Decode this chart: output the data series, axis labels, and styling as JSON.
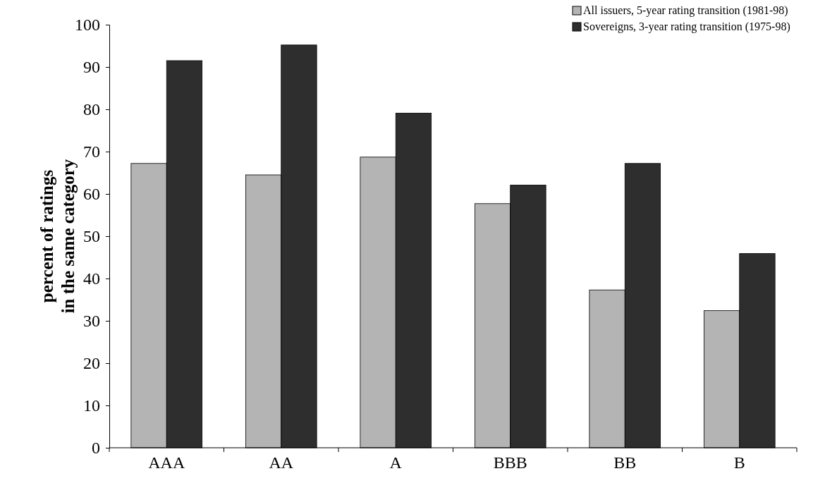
{
  "chart_data": {
    "type": "bar",
    "ylabel": "percent of ratings\nin the same category",
    "categories": [
      "AAA",
      "AA",
      "A",
      "BBB",
      "BB",
      "B"
    ],
    "series": [
      {
        "name": "All issuers, 5-year rating transition (1981-98)",
        "color": "#b4b4b4",
        "values": [
          67.2,
          64.5,
          68.7,
          57.7,
          37.3,
          32.4
        ]
      },
      {
        "name": "Sovereigns, 3-year rating transition (1975-98)",
        "color": "#2e2e2e",
        "values": [
          91.5,
          95.2,
          79.1,
          62.1,
          67.2,
          45.9
        ]
      }
    ],
    "ylim": [
      0,
      100
    ],
    "yticks": [
      0,
      10,
      20,
      30,
      40,
      50,
      60,
      70,
      80,
      90,
      100
    ],
    "grid": false,
    "legend": "top right"
  }
}
